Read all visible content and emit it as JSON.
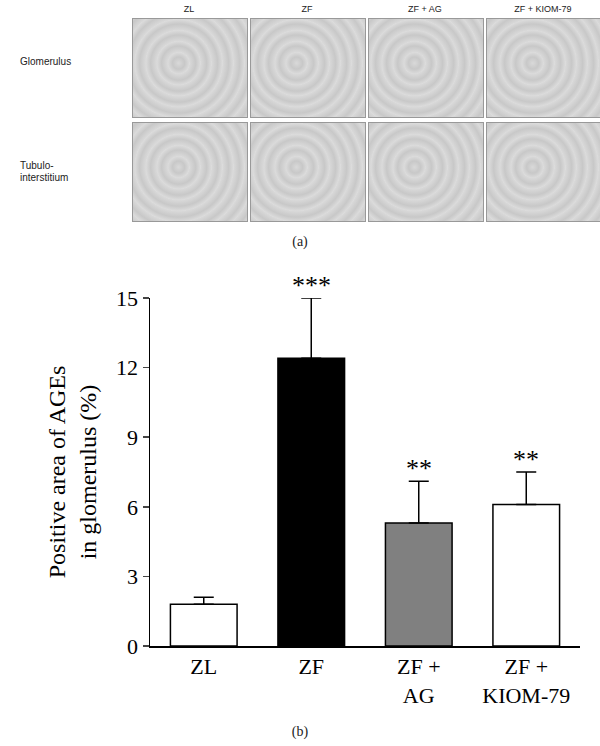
{
  "figure": {
    "panel_a": {
      "label": "(a)",
      "columns": [
        "ZL",
        "ZF",
        "ZF + AG",
        "ZF + KIOM-79"
      ],
      "rows": [
        "Glomerulus",
        "Tubulo-\ninterstitium"
      ]
    },
    "panel_b_label": "(b)"
  },
  "chart_data": {
    "type": "bar",
    "categories": [
      "ZL",
      "ZF",
      "ZF +\nAG",
      "ZF +\nKIOM-79"
    ],
    "values": [
      1.8,
      12.4,
      5.3,
      6.1
    ],
    "errors": [
      0.3,
      2.6,
      1.8,
      1.4
    ],
    "colors": [
      "#ffffff",
      "#000000",
      "#808080",
      "#ffffff"
    ],
    "y_label": "Positive area of AGEs\nin glomerulus (%)",
    "ylim": [
      0,
      15
    ],
    "yticks": [
      0,
      3,
      6,
      9,
      12,
      15
    ],
    "grid": false,
    "annotations": [
      {
        "category": "ZF",
        "text": "***"
      },
      {
        "category": "ZF +\nAG",
        "text": "**"
      },
      {
        "category": "ZF +\nKIOM-79",
        "text": "**"
      }
    ]
  }
}
